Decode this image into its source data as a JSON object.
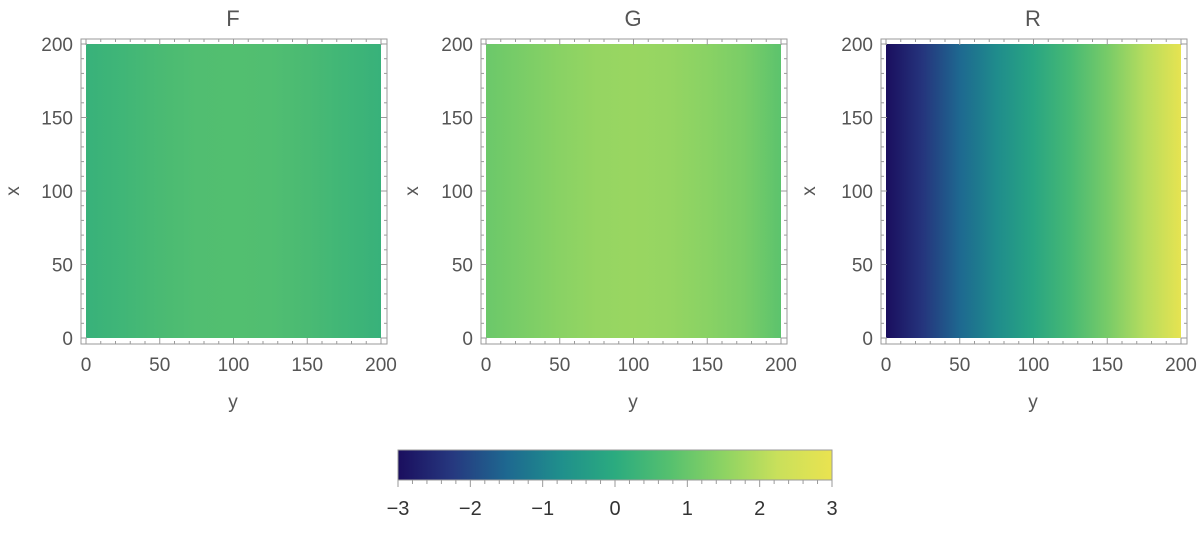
{
  "chart_data": [
    {
      "type": "heatmap",
      "title": "F",
      "xlabel": "y",
      "ylabel": "x",
      "xlim": [
        0,
        200
      ],
      "ylim": [
        0,
        200
      ],
      "xticks": [
        "0",
        "50",
        "100",
        "150",
        "200"
      ],
      "yticks": [
        "0",
        "50",
        "100",
        "150",
        "200"
      ],
      "profile_y": [
        0,
        25,
        50,
        75,
        100,
        125,
        150,
        175,
        200
      ],
      "values": [
        0.23,
        0.38,
        0.55,
        0.67,
        0.7,
        0.67,
        0.55,
        0.38,
        0.23
      ]
    },
    {
      "type": "heatmap",
      "title": "G",
      "xlabel": "y",
      "ylabel": "x",
      "xlim": [
        0,
        200
      ],
      "ylim": [
        0,
        200
      ],
      "xticks": [
        "0",
        "50",
        "100",
        "150",
        "200"
      ],
      "yticks": [
        "0",
        "50",
        "100",
        "150",
        "200"
      ],
      "profile_y": [
        0,
        25,
        50,
        75,
        100,
        125,
        150,
        175,
        200
      ],
      "values": [
        1.05,
        1.25,
        1.45,
        1.6,
        1.65,
        1.6,
        1.45,
        1.25,
        0.85
      ]
    },
    {
      "type": "heatmap",
      "title": "R",
      "xlabel": "y",
      "ylabel": "x",
      "xlim": [
        0,
        200
      ],
      "ylim": [
        0,
        200
      ],
      "xticks": [
        "0",
        "50",
        "100",
        "150",
        "200"
      ],
      "yticks": [
        "0",
        "50",
        "100",
        "150",
        "200"
      ],
      "profile_y": [
        0,
        25,
        50,
        75,
        100,
        125,
        150,
        175,
        200
      ],
      "values": [
        -3.0,
        -2.3,
        -1.5,
        -0.8,
        -0.15,
        0.5,
        1.2,
        2.0,
        2.9
      ]
    }
  ],
  "colorbar": {
    "min": -3,
    "max": 3,
    "labels": [
      "−3",
      "−2",
      "−1",
      "0",
      "1",
      "2",
      "3"
    ],
    "colormap": [
      "#1a0e5e",
      "#26387f",
      "#1e6890",
      "#1f8f8c",
      "#2bab7f",
      "#55c06f",
      "#8dd363",
      "#c9e05b",
      "#eae350"
    ]
  }
}
